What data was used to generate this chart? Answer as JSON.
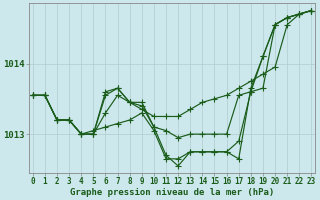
{
  "background_color": "#cde8ed",
  "grid_color": "#b0cccc",
  "line_color": "#1a5c1a",
  "xlabel": "Graphe pression niveau de la mer (hPa)",
  "ylim": [
    1012.45,
    1014.85
  ],
  "xlim": [
    -0.3,
    23.3
  ],
  "yticks": [
    1013,
    1014
  ],
  "xticks": [
    0,
    1,
    2,
    3,
    4,
    5,
    6,
    7,
    8,
    9,
    10,
    11,
    12,
    13,
    14,
    15,
    16,
    17,
    18,
    19,
    20,
    21,
    22,
    23
  ],
  "series": [
    [
      1013.55,
      1013.55,
      1013.2,
      1013.2,
      1013.0,
      1013.0,
      1013.6,
      1013.65,
      1013.45,
      1013.4,
      1013.1,
      1012.7,
      1012.55,
      1012.75,
      1012.75,
      1012.75,
      1012.75,
      1012.9,
      1013.6,
      1014.1,
      1014.55,
      1014.65,
      1014.7,
      1014.75
    ],
    [
      1013.55,
      1013.55,
      1013.2,
      1013.2,
      1013.0,
      1013.0,
      1013.3,
      1013.55,
      1013.45,
      1013.35,
      1013.25,
      1013.25,
      1013.25,
      1013.35,
      1013.45,
      1013.5,
      1013.55,
      1013.65,
      1013.75,
      1013.85,
      1013.95,
      1014.55,
      1014.7,
      1014.75
    ],
    [
      1013.55,
      1013.55,
      1013.2,
      1013.2,
      1013.0,
      1013.0,
      1013.55,
      1013.65,
      1013.45,
      1013.45,
      1013.1,
      1013.05,
      1012.95,
      1013.0,
      1013.0,
      1013.0,
      1013.0,
      1013.55,
      1013.6,
      1013.65,
      1014.55,
      1014.65,
      1014.7,
      1014.75
    ],
    [
      1013.55,
      1013.55,
      1013.2,
      1013.2,
      1013.0,
      1013.05,
      1013.1,
      1013.15,
      1013.2,
      1013.3,
      1013.05,
      1012.65,
      1012.65,
      1012.75,
      1012.75,
      1012.75,
      1012.75,
      1012.65,
      1013.65,
      1014.1,
      1014.55,
      1014.65,
      1014.7,
      1014.75
    ]
  ],
  "marker_size": 2.2,
  "linewidth": 0.85,
  "tick_fontsize": 5.5,
  "ylabel_fontsize": 6.5,
  "xlabel_fontsize": 6.5
}
